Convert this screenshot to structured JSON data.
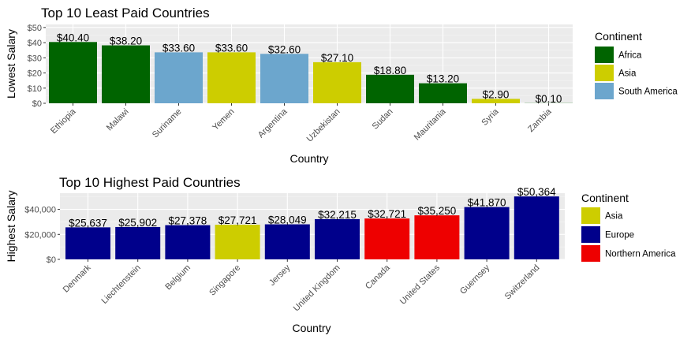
{
  "chart_data": [
    {
      "type": "bar",
      "title": "Top 10 Least Paid Countries",
      "xlabel": "Country",
      "ylabel": "Lowest Salary",
      "ylim": [
        0,
        52
      ],
      "yticks": [
        0,
        10,
        20,
        30,
        40,
        50
      ],
      "ytick_labels": [
        "$0",
        "$10",
        "$20",
        "$30",
        "$40",
        "$50"
      ],
      "grid": true,
      "legend_title": "Continent",
      "legend_position": "right",
      "legend": [
        {
          "label": "Africa",
          "color": "#006400"
        },
        {
          "label": "Asia",
          "color": "#CDCD00"
        },
        {
          "label": "South America",
          "color": "#6CA6CD"
        }
      ],
      "categories": [
        "Ethiopia",
        "Malawi",
        "Suriname",
        "Yemen",
        "Argentina",
        "Uzbekistan",
        "Sudan",
        "Mauritania",
        "Syria",
        "Zambia"
      ],
      "values": [
        40.4,
        38.2,
        33.6,
        33.6,
        32.6,
        27.1,
        18.8,
        13.2,
        2.9,
        0.1
      ],
      "groups": [
        "Africa",
        "Africa",
        "South America",
        "Asia",
        "South America",
        "Asia",
        "Africa",
        "Africa",
        "Asia",
        "Africa"
      ],
      "data_labels": [
        "$40.40",
        "$38.20",
        "$33.60",
        "$33.60",
        "$32.60",
        "$27.10",
        "$18.80",
        "$13.20",
        "$2.90",
        "$0.10"
      ]
    },
    {
      "type": "bar",
      "title": "Top 10 Highest Paid Countries",
      "xlabel": "Country",
      "ylabel": "Highest Salary",
      "ylim": [
        0,
        53000
      ],
      "yticks": [
        0,
        20000,
        40000
      ],
      "ytick_labels": [
        "$0",
        "$20,000",
        "$40,000"
      ],
      "grid": true,
      "legend_title": "Continent",
      "legend_position": "right",
      "legend": [
        {
          "label": "Asia",
          "color": "#CDCD00"
        },
        {
          "label": "Europe",
          "color": "#00008B"
        },
        {
          "label": "Northern America",
          "color": "#EE0000"
        }
      ],
      "categories": [
        "Denmark",
        "Liechtenstein",
        "Belgium",
        "Singapore",
        "Jersey",
        "United Kingdom",
        "Canada",
        "United States",
        "Guernsey",
        "Switzerland"
      ],
      "values": [
        25637,
        25902,
        27378,
        27721,
        28049,
        32215,
        32721,
        35250,
        41870,
        50364
      ],
      "groups": [
        "Europe",
        "Europe",
        "Europe",
        "Asia",
        "Europe",
        "Europe",
        "Northern America",
        "Northern America",
        "Europe",
        "Europe"
      ],
      "data_labels": [
        "$25,637",
        "$25,902",
        "$27,378",
        "$27,721",
        "$28,049",
        "$32,215",
        "$32,721",
        "$35,250",
        "$41,870",
        "$50,364"
      ]
    }
  ]
}
